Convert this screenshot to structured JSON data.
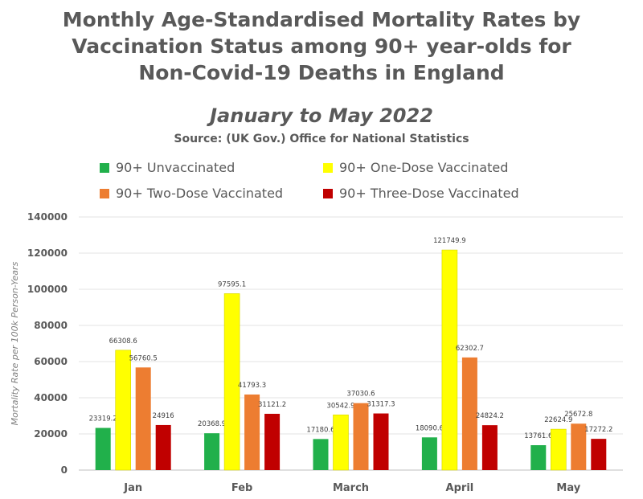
{
  "chart_data": {
    "type": "bar",
    "title_lines": [
      "Monthly Age-Standardised Mortality Rates by",
      "Vaccination Status among 90+ year-olds for",
      "Non-Covid-19 Deaths in England"
    ],
    "subtitle": "January to May 2022",
    "source": "Source: (UK Gov.) Office for National Statistics",
    "ylabel": "Mortality Rate per 100k Person-Years",
    "xlabel": "",
    "ylim": [
      0,
      140000
    ],
    "yticks": [
      "0",
      "20000",
      "40000",
      "60000",
      "80000",
      "100000",
      "120000",
      "140000"
    ],
    "grid": true,
    "legend_position": "top",
    "categories": [
      "Jan",
      "Feb",
      "March",
      "April",
      "May"
    ],
    "series": [
      {
        "name": "90+ Unvaccinated",
        "color": "#21b04b",
        "values": [
          23319.2,
          20368.9,
          17180.6,
          18090.6,
          13761.6
        ],
        "labels": [
          "23319.2",
          "20368.9",
          "17180.6",
          "18090.6",
          "13761.6"
        ]
      },
      {
        "name": "90+ One-Dose Vaccinated",
        "color": "#ffff00",
        "values": [
          66308.6,
          97595.1,
          30542.9,
          121749.9,
          22624.9
        ],
        "labels": [
          "66308.6",
          "97595.1",
          "30542.9",
          "121749.9",
          "22624.9"
        ]
      },
      {
        "name": "90+ Two-Dose Vaccinated",
        "color": "#ed7d31",
        "values": [
          56760.5,
          41793.3,
          37030.6,
          62302.7,
          25672.8
        ],
        "labels": [
          "56760.5",
          "41793.3",
          "37030.6",
          "62302.7",
          "25672.8"
        ]
      },
      {
        "name": "90+ Three-Dose Vaccinated",
        "color": "#c00000",
        "values": [
          24916,
          31121.2,
          31317.3,
          24824.2,
          17272.2
        ],
        "labels": [
          "24916",
          "31121.2",
          "31317.3",
          "24824.2",
          "17272.2"
        ]
      }
    ]
  }
}
